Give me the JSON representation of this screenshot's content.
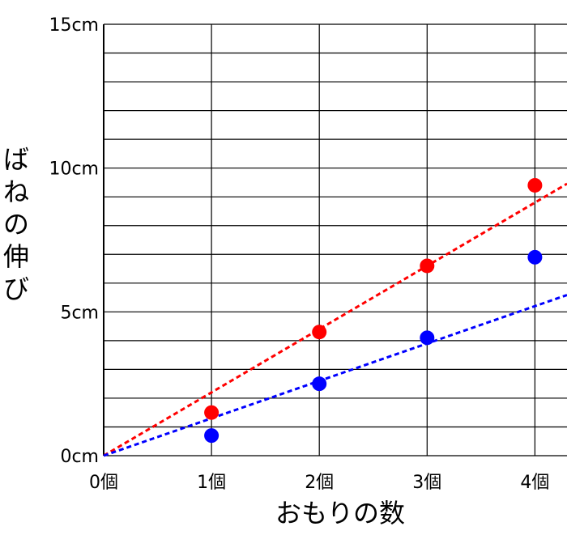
{
  "chart_data": {
    "type": "scatter",
    "xlabel": "おもりの数",
    "ylabel": "ばねの伸び",
    "x_ticks": [
      "0個",
      "1個",
      "2個",
      "3個",
      "4個"
    ],
    "y_ticks": [
      "0cm",
      "5cm",
      "10cm",
      "15cm"
    ],
    "y_tick_values": [
      0,
      5,
      10,
      15
    ],
    "xlim": [
      0,
      4.25
    ],
    "ylim": [
      0,
      15
    ],
    "grid": true,
    "y_minor_step": 1,
    "colors": {
      "red": "#ff0000",
      "blue": "#0000ff",
      "grid": "#000000"
    },
    "series": [
      {
        "color": "#ff0000",
        "points": [
          [
            1,
            1.5
          ],
          [
            2,
            4.3
          ],
          [
            3,
            6.6
          ],
          [
            4,
            9.4
          ]
        ],
        "fit_line": {
          "slope": 2.2,
          "intercept": 0
        }
      },
      {
        "color": "#0000ff",
        "points": [
          [
            1,
            0.7
          ],
          [
            2,
            2.5
          ],
          [
            3,
            4.1
          ],
          [
            4,
            6.9
          ]
        ],
        "fit_line": {
          "slope": 1.3,
          "intercept": 0
        }
      }
    ]
  }
}
